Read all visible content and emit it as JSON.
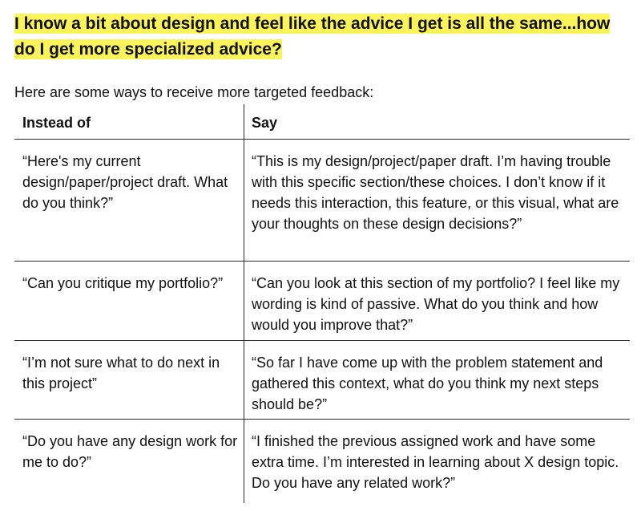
{
  "heading": "I know a bit about design and feel like the advice I get is all the same...how do I get more specialized advice?",
  "intro": "Here are some ways to receive more targeted feedback:",
  "table": {
    "headers": {
      "left": "Instead of",
      "right": "Say"
    },
    "rows": [
      {
        "instead": "“Here's my current design/paper/project draft. What do you think?”",
        "say": "“This is my design/project/paper draft. I’m having trouble with this specific section/these choices. I don’t know if it needs this interaction, this feature, or this visual, what are your thoughts on these design decisions?”"
      },
      {
        "instead": "“Can you critique my portfolio?”",
        "say": "“Can you look at this section of my portfolio? I feel like my wording is kind of passive. What do you think and how would you improve that?”"
      },
      {
        "instead": "“I’m not sure what to do next in this project”",
        "say": "“So far I have come up with the problem statement and gathered this context, what do you think my next steps should be?”"
      },
      {
        "instead": "“Do you have any design work for me to do?”",
        "say": "“I finished the previous assigned work and have some extra time. I’m interested in learning about X design topic. Do you have any related work?”"
      }
    ]
  }
}
